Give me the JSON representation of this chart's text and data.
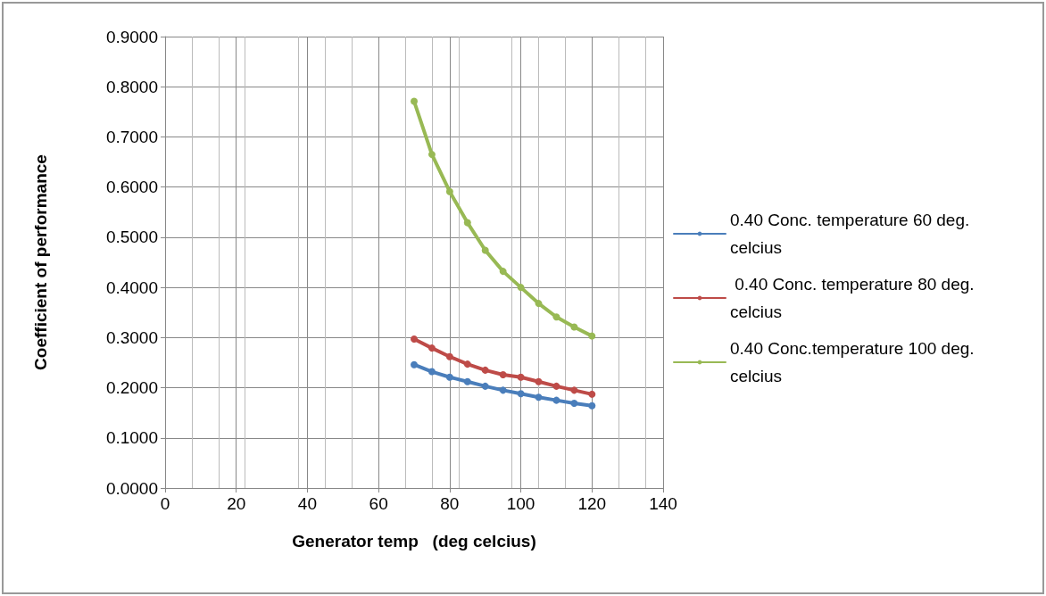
{
  "chart_data": {
    "type": "line",
    "xlabel": "Generator temp   (deg celcius)",
    "ylabel": "Coefficient of performance",
    "x": [
      70,
      75,
      80,
      85,
      90,
      95,
      100,
      105,
      110,
      115,
      120
    ],
    "series": [
      {
        "name": "0.40 Conc. temperature 60 deg. celcius",
        "color": "#4a7ebb",
        "values": [
          0.246,
          0.232,
          0.221,
          0.212,
          0.203,
          0.195,
          0.188,
          0.181,
          0.175,
          0.169,
          0.164
        ]
      },
      {
        "name": " 0.40 Conc. temperature 80 deg. celcius",
        "color": "#be4b48",
        "values": [
          0.297,
          0.279,
          0.262,
          0.247,
          0.235,
          0.226,
          0.221,
          0.212,
          0.203,
          0.195,
          0.187
        ]
      },
      {
        "name": "0.40 Conc.temperature 100 deg. celcius",
        "color": "#98b954",
        "values": [
          0.771,
          0.665,
          0.591,
          0.529,
          0.474,
          0.432,
          0.4,
          0.368,
          0.341,
          0.321,
          0.303
        ]
      }
    ],
    "xlim": [
      0,
      140
    ],
    "xticks": [
      0,
      20,
      40,
      60,
      80,
      100,
      120,
      140
    ],
    "ylim": [
      0,
      0.9
    ],
    "yticks": [
      {
        "value": 0,
        "label": "0.0000"
      },
      {
        "value": 0.1,
        "label": "0.1000"
      },
      {
        "value": 0.2,
        "label": "0.2000"
      },
      {
        "value": 0.3,
        "label": "0.3000"
      },
      {
        "value": 0.4,
        "label": "0.4000"
      },
      {
        "value": 0.5,
        "label": "0.5000"
      },
      {
        "value": 0.6,
        "label": "0.6000"
      },
      {
        "value": 0.7,
        "label": "0.7000"
      },
      {
        "value": 0.8,
        "label": "0.8000"
      },
      {
        "value": 0.9,
        "label": "0.9000"
      }
    ],
    "grid": true,
    "legend": "right",
    "marker": "circle",
    "line_style": "solid"
  }
}
